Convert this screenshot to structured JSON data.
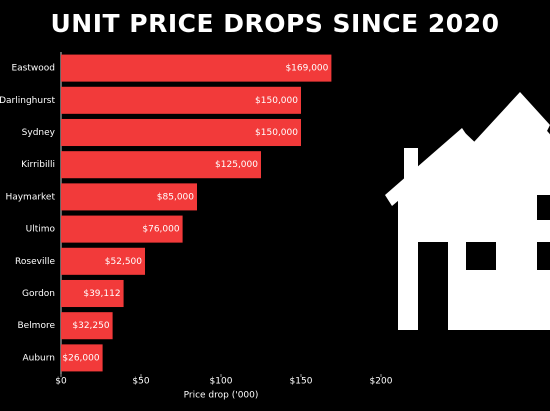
{
  "chart_data": {
    "type": "bar",
    "orientation": "horizontal",
    "title": "UNIT PRICE DROPS SINCE 2020",
    "xlabel": "Price drop ('000)",
    "categories": [
      "Eastwood",
      "Darlinghurst",
      "Sydney",
      "Kirribilli",
      "Haymarket",
      "Ultimo",
      "Roseville",
      "Gordon",
      "Belmore",
      "Auburn"
    ],
    "values": [
      169,
      150,
      150,
      125,
      85,
      76,
      52.5,
      39.112,
      32.25,
      26
    ],
    "value_labels": [
      "$169,000",
      "$150,000",
      "$150,000",
      "$125,000",
      "$85,000",
      "$76,000",
      "$52,500",
      "$39,112",
      "$32,250",
      "$26,000"
    ],
    "color": "#f23a3a",
    "xlim": [
      0,
      200
    ],
    "xticks": [
      {
        "value": 0,
        "label": "$0"
      },
      {
        "value": 50,
        "label": "$50"
      },
      {
        "value": 100,
        "label": "$100"
      },
      {
        "value": 150,
        "label": "$150"
      },
      {
        "value": 200,
        "label": "$200"
      }
    ]
  }
}
